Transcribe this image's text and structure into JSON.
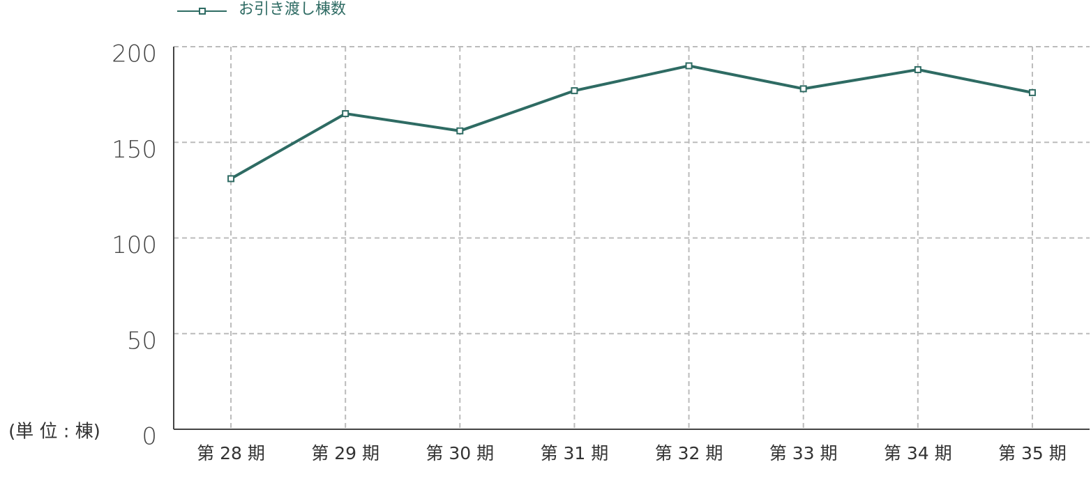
{
  "chart_data": {
    "type": "line",
    "unit_label": "(単 位 : 棟)",
    "categories": [
      "第 28 期",
      "第 29 期",
      "第 30 期",
      "第 31 期",
      "第 32 期",
      "第 33 期",
      "第 34 期",
      "第 35 期"
    ],
    "series": [
      {
        "name": "お引き渡し棟数",
        "color": "#2e6b63",
        "values": [
          131,
          165,
          156,
          177,
          190,
          178,
          188,
          176
        ]
      }
    ],
    "ylim": [
      0,
      200
    ],
    "yticks": [
      0,
      50,
      100,
      150,
      200
    ],
    "grid": true,
    "legend": "top-left"
  }
}
